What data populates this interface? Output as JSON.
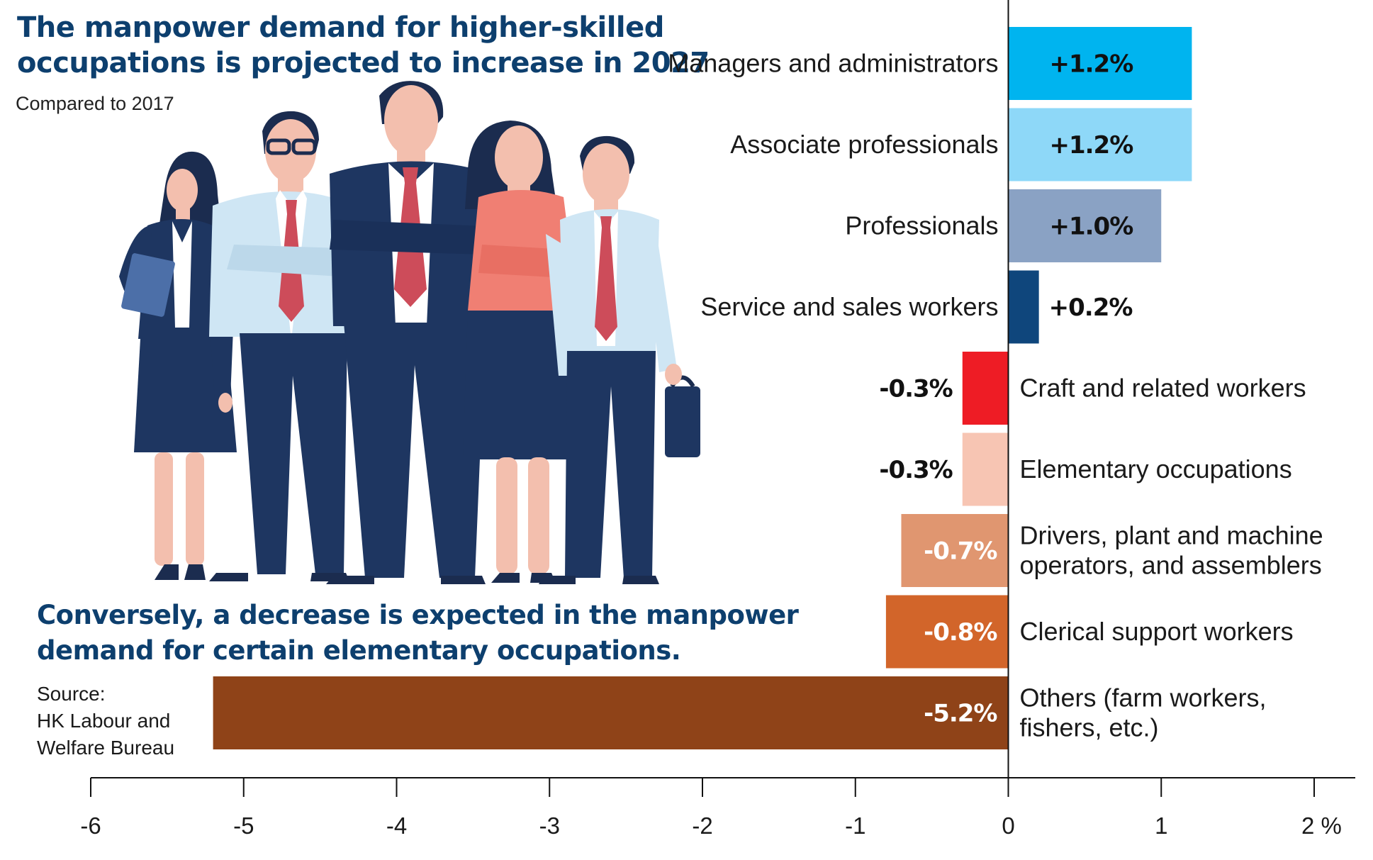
{
  "chart_data": {
    "type": "bar",
    "orientation": "horizontal",
    "title_lines": [
      "The manpower demand for higher-skilled",
      "occupations is projected to increase in 2027"
    ],
    "subtitle": "Compared to 2017",
    "note_lines": [
      "Conversely, a decrease is expected in the manpower",
      "demand for certain elementary occupations."
    ],
    "source_lines": [
      "Source:",
      "HK Labour and",
      "Welfare Bureau"
    ],
    "unit": "%",
    "xlim": [
      -6,
      2
    ],
    "xticks": [
      -6,
      -5,
      -4,
      -3,
      -2,
      -1,
      0,
      1,
      2
    ],
    "tick_labels": [
      "-6",
      "-5",
      "-4",
      "-3",
      "-2",
      "-1",
      "0",
      "1",
      "2 %"
    ],
    "categories": [
      {
        "label_lines": [
          "Managers and administrators"
        ],
        "value": 1.2,
        "value_label": "+1.2%",
        "color": "#00b4ef",
        "label_color": "#111111"
      },
      {
        "label_lines": [
          "Associate professionals"
        ],
        "value": 1.2,
        "value_label": "+1.2%",
        "color": "#8ed8f8",
        "label_color": "#111111"
      },
      {
        "label_lines": [
          "Professionals"
        ],
        "value": 1.0,
        "value_label": "+1.0%",
        "color": "#8aa2c4",
        "label_color": "#111111"
      },
      {
        "label_lines": [
          "Service and sales workers"
        ],
        "value": 0.2,
        "value_label": "+0.2%",
        "color": "#0f467c",
        "label_color": "#111111"
      },
      {
        "label_lines": [
          "Craft and related workers"
        ],
        "value": -0.3,
        "value_label": "-0.3%",
        "color": "#ee1c25",
        "label_color": "#111111"
      },
      {
        "label_lines": [
          "Elementary occupations"
        ],
        "value": -0.3,
        "value_label": "-0.3%",
        "color": "#f7c5b3",
        "label_color": "#111111"
      },
      {
        "label_lines": [
          "Drivers, plant and machine",
          "operators, and assemblers"
        ],
        "value": -0.7,
        "value_label": "-0.7%",
        "color": "#e09670",
        "label_color": "#ffffff"
      },
      {
        "label_lines": [
          "Clerical support workers"
        ],
        "value": -0.8,
        "value_label": "-0.8%",
        "color": "#d2652a",
        "label_color": "#ffffff"
      },
      {
        "label_lines": [
          "Others (farm workers,",
          "fishers, etc.)"
        ],
        "value": -5.2,
        "value_label": "-5.2%",
        "color": "#8f4318",
        "label_color": "#ffffff"
      }
    ]
  },
  "illustration": {
    "name": "business-team-illustration",
    "colors": {
      "navy": "#1e3661",
      "lightblue": "#cfe6f4",
      "skin": "#f3bfae",
      "tie": "#cd4c5a",
      "coral": "#f07f73",
      "hair": "#1b2c4f"
    }
  }
}
